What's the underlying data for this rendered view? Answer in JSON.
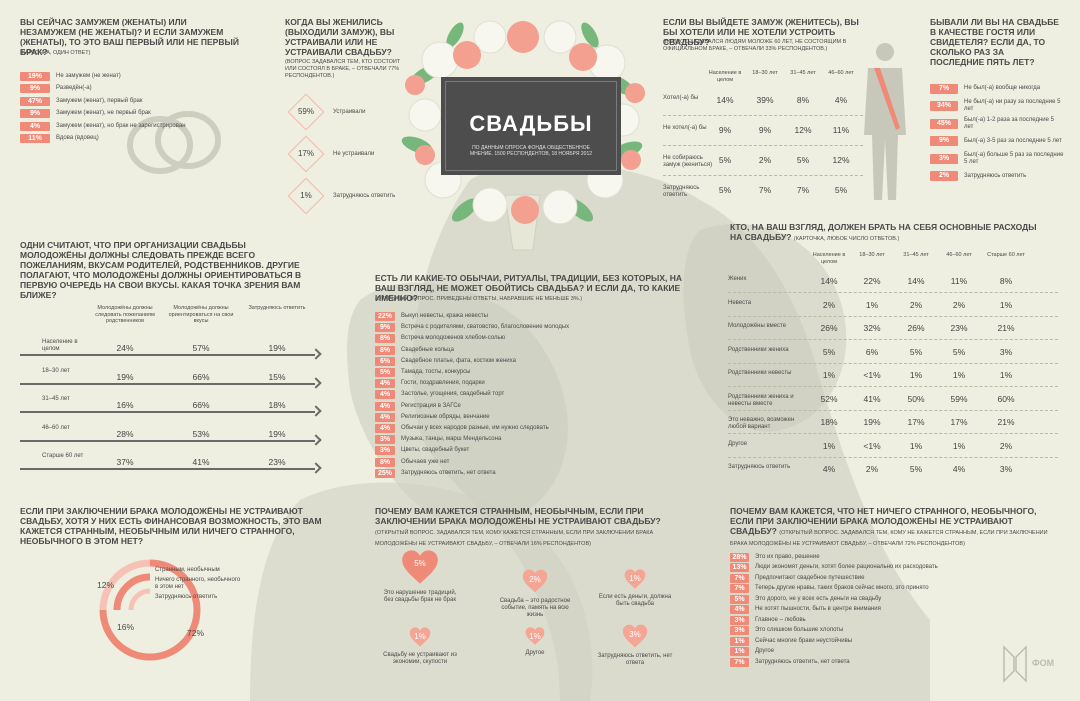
{
  "title": {
    "main": "СВАДЬБЫ",
    "sub": "ПО ДАННЫМ ОПРОСА ФОНДА ОБЩЕСТВЕННОЕ МНЕНИЕ. 1500 РЕСПОНДЕНТОВ, 18 НОЯБРЯ 2012"
  },
  "q1": {
    "title": "ВЫ СЕЙЧАС ЗАМУЖЕМ (ЖЕНАТЫ) ИЛИ НЕЗАМУЖЕМ (НЕ ЖЕНАТЫ)? И ЕСЛИ ЗАМУЖЕМ (ЖЕНАТЫ), ТО ЭТО ВАШ ПЕРВЫЙ ИЛИ НЕ ПЕРВЫЙ БРАК?",
    "note": "(КАРТОЧКА, ОДИН ОТВЕТ)",
    "items": [
      {
        "pct": "19%",
        "label": "Не замужем (не женат)"
      },
      {
        "pct": "9%",
        "label": "Разведён(-а)"
      },
      {
        "pct": "47%",
        "label": "Замужем (женат), первый брак"
      },
      {
        "pct": "9%",
        "label": "Замужем (женат), не первый брак"
      },
      {
        "pct": "4%",
        "label": "Замужем (женат), но брак не зарегистрирован"
      },
      {
        "pct": "11%",
        "label": "Вдова (вдовец)"
      }
    ]
  },
  "q2": {
    "title": "КОГДА ВЫ ЖЕНИЛИСЬ (ВЫХОДИЛИ ЗАМУЖ), ВЫ УСТРАИВАЛИ ИЛИ НЕ УСТРАИВАЛИ СВАДЬБУ?",
    "note": "(ВОПРОС ЗАДАВАЛСЯ ТЕМ, КТО СОСТОИТ ИЛИ СОСТОЯЛ В БРАКЕ, – ОТВЕЧАЛИ 77% РЕСПОНДЕНТОВ.)",
    "items": [
      {
        "pct": "59%",
        "label": "Устраивали"
      },
      {
        "pct": "17%",
        "label": "Не устраивали"
      },
      {
        "pct": "1%",
        "label": "Затрудняюсь ответить"
      }
    ]
  },
  "q3": {
    "title": "ЕСЛИ ВЫ ВЫЙДЕТЕ ЗАМУЖ (ЖЕНИТЕСЬ), ВЫ БЫ ХОТЕЛИ ИЛИ НЕ ХОТЕЛИ УСТРОИТЬ СВАДЬБУ?",
    "note": "(ВОПРОС ЗАДАВАЛСЯ ЛЮДЯМ МОЛОЖЕ 60 ЛЕТ, НЕ СОСТОЯЩИМ В ОФИЦИАЛЬНОМ БРАКЕ, – ОТВЕЧАЛИ 33% РЕСПОНДЕНТОВ.)",
    "columns": [
      "Население в целом",
      "18–30 лет",
      "31–45 лет",
      "46–60 лет"
    ],
    "rows": [
      {
        "label": "Хотел(-а) бы",
        "values": [
          "14%",
          "39%",
          "8%",
          "4%"
        ]
      },
      {
        "label": "Не хотел(-а) бы",
        "values": [
          "9%",
          "9%",
          "12%",
          "11%"
        ]
      },
      {
        "label": "Не собираюсь замуж (жениться)",
        "values": [
          "5%",
          "2%",
          "5%",
          "12%"
        ]
      },
      {
        "label": "Затрудняюсь ответить",
        "values": [
          "5%",
          "7%",
          "7%",
          "5%"
        ]
      }
    ]
  },
  "q4": {
    "title": "БЫВАЛИ ЛИ ВЫ НА СВАДЬБЕ В КАЧЕСТВЕ ГОСТЯ ИЛИ СВИДЕТЕЛЯ? ЕСЛИ ДА, ТО СКОЛЬКО РАЗ ЗА ПОСЛЕДНИЕ ПЯТЬ ЛЕТ?",
    "items": [
      {
        "pct": "7%",
        "label": "Не был(-а) вообще никогда"
      },
      {
        "pct": "34%",
        "label": "Не был(-а) ни разу за последние 5 лет"
      },
      {
        "pct": "45%",
        "label": "Был(-а) 1-2 раза за последние 5 лет"
      },
      {
        "pct": "9%",
        "label": "Был(-а) 3-5 раз за последние 5 лет"
      },
      {
        "pct": "3%",
        "label": "Был(-а) больше 5 раз за последние 5 лет"
      },
      {
        "pct": "2%",
        "label": "Затрудняюсь ответить"
      }
    ]
  },
  "q5": {
    "title": "ОДНИ СЧИТАЮТ, ЧТО ПРИ ОРГАНИЗАЦИИ СВАДЬБЫ МОЛОДОЖЁНЫ ДОЛЖНЫ СЛЕДОВАТЬ ПРЕЖДЕ ВСЕГО ПОЖЕЛАНИЯМ, ВКУСАМ РОДИТЕЛЕЙ, РОДСТВЕННИКОВ. ДРУГИЕ ПОЛАГАЮТ, ЧТО МОЛОДОЖЁНЫ ДОЛЖНЫ ОРИЕНТИРОВАТЬСЯ В ПЕРВУЮ ОЧЕРЕДЬ НА СВОИ ВКУСЫ. КАКАЯ ТОЧКА ЗРЕНИЯ ВАМ БЛИЖЕ?",
    "columns": [
      "Молодожёны должны следовать пожеланиям родственников",
      "Молодожёны должны ориентироваться на свои вкусы",
      "Затрудняюсь ответить"
    ],
    "rows": [
      {
        "label": "Население в целом",
        "values": [
          "24%",
          "57%",
          "19%"
        ]
      },
      {
        "label": "18–30 лет",
        "values": [
          "19%",
          "66%",
          "15%"
        ]
      },
      {
        "label": "31–45 лет",
        "values": [
          "16%",
          "66%",
          "18%"
        ]
      },
      {
        "label": "46–60 лет",
        "values": [
          "28%",
          "53%",
          "19%"
        ]
      },
      {
        "label": "Старше 60 лет",
        "values": [
          "37%",
          "41%",
          "23%"
        ]
      }
    ]
  },
  "q6": {
    "title": "ЕСТЬ ЛИ КАКИЕ-ТО ОБЫЧАИ, РИТУАЛЫ, ТРАДИЦИИ, БЕЗ КОТОРЫХ, НА ВАШ ВЗГЛЯД, НЕ МОЖЕТ ОБОЙТИСЬ СВАДЬБА? И ЕСЛИ ДА, ТО КАКИЕ ИМЕННО?",
    "note": "(ОТКРЫТЫЙ ВОПРОС. ПРИВЕДЕНЫ ОТВЕТЫ, НАБРАВШИЕ НЕ МЕНЬШЕ 3%.)",
    "items": [
      {
        "pct": "22%",
        "label": "Выкуп невесты, кража невесты"
      },
      {
        "pct": "9%",
        "label": "Встреча с родителями, сватовство, благословение молодых"
      },
      {
        "pct": "8%",
        "label": "Встреча молодоженов хлебом-солью"
      },
      {
        "pct": "8%",
        "label": "Свадебные кольца"
      },
      {
        "pct": "6%",
        "label": "Свадебное платье, фата, костюм жениха"
      },
      {
        "pct": "5%",
        "label": "Тамада, тосты, конкурсы"
      },
      {
        "pct": "4%",
        "label": "Гости, поздравления, подарки"
      },
      {
        "pct": "4%",
        "label": "Застолье, угощения, свадебный торт"
      },
      {
        "pct": "4%",
        "label": "Регистрация в ЗАГСе"
      },
      {
        "pct": "4%",
        "label": "Религиозные обряды, венчание"
      },
      {
        "pct": "4%",
        "label": "Обычаи у всех народов разные, им нужно следовать"
      },
      {
        "pct": "3%",
        "label": "Музыка, танцы, марш Мендельсона"
      },
      {
        "pct": "3%",
        "label": "Цветы, свадебный букет"
      },
      {
        "pct": "8%",
        "label": "Обычаев уже нет"
      },
      {
        "pct": "25%",
        "label": "Затрудняюсь ответить, нет ответа"
      }
    ]
  },
  "q7": {
    "title": "КТО, НА ВАШ ВЗГЛЯД, ДОЛЖЕН БРАТЬ НА СЕБЯ ОСНОВНЫЕ РАСХОДЫ НА СВАДЬБУ?",
    "note": "(КАРТОЧКА, ЛЮБОЕ ЧИСЛО ОТВЕТОВ.)",
    "columns": [
      "Население в целом",
      "18–30 лет",
      "31–45 лет",
      "46–60 лет",
      "Старше 60 лет"
    ],
    "rows": [
      {
        "label": "Жених",
        "values": [
          "14%",
          "22%",
          "14%",
          "11%",
          "8%"
        ]
      },
      {
        "label": "Невеста",
        "values": [
          "2%",
          "1%",
          "2%",
          "2%",
          "1%"
        ]
      },
      {
        "label": "Молодожёны вместе",
        "values": [
          "26%",
          "32%",
          "26%",
          "23%",
          "21%"
        ]
      },
      {
        "label": "Родственники жениха",
        "values": [
          "5%",
          "6%",
          "5%",
          "5%",
          "3%"
        ]
      },
      {
        "label": "Родственники невесты",
        "values": [
          "1%",
          "<1%",
          "1%",
          "1%",
          "1%"
        ]
      },
      {
        "label": "Родственники жениха и невесты вместе",
        "values": [
          "52%",
          "41%",
          "50%",
          "59%",
          "60%"
        ]
      },
      {
        "label": "Это неважно, возможен любой вариант",
        "values": [
          "18%",
          "19%",
          "17%",
          "17%",
          "21%"
        ]
      },
      {
        "label": "Другое",
        "values": [
          "1%",
          "<1%",
          "1%",
          "1%",
          "2%"
        ]
      },
      {
        "label": "Затрудняюсь ответить",
        "values": [
          "4%",
          "2%",
          "5%",
          "4%",
          "3%"
        ]
      }
    ]
  },
  "q8": {
    "title": "ЕСЛИ ПРИ ЗАКЛЮЧЕНИИ БРАКА МОЛОДОЖЁНЫ НЕ УСТРАИВАЮТ СВАДЬБУ, ХОТЯ У НИХ ЕСТЬ ФИНАНСОВАЯ ВОЗМОЖНОСТЬ, ЭТО ВАМ КАЖЕТСЯ СТРАННЫМ, НЕОБЫЧНЫМ ИЛИ НИЧЕГО СТРАННОГО, НЕОБЫЧНОГО В ЭТОМ НЕТ?",
    "legend": [
      "Странным, необычным",
      "Ничего странного, необычного в этом нет",
      "Затрудняюсь ответить"
    ],
    "values": [
      "16%",
      "72%",
      "12%"
    ]
  },
  "q9": {
    "title": "ПОЧЕМУ ВАМ КАЖЕТСЯ СТРАННЫМ, НЕОБЫЧНЫМ, ЕСЛИ ПРИ ЗАКЛЮЧЕНИИ БРАКА МОЛОДОЖЁНЫ НЕ УСТРАИВАЮТ СВАДЬБУ?",
    "note": "(ОТКРЫТЫЙ ВОПРОС. ЗАДАВАЛСЯ ТЕМ, КОМУ КАЖЕТСЯ СТРАННЫМ, ЕСЛИ ПРИ ЗАКЛЮЧЕНИИ БРАКА МОЛОДОЖЁНЫ НЕ УСТРАИВАЮТ СВАДЬБУ, – ОТВЕЧАЛИ 16% РЕСПОНДЕНТОВ)",
    "items": [
      {
        "pct": "5%",
        "label": "Это нарушение традиций, без свадьбы брак не брак"
      },
      {
        "pct": "2%",
        "label": "Свадьба – это радостное событие, память на всю жизнь"
      },
      {
        "pct": "1%",
        "label": "Если есть деньги, должна быть свадьба"
      },
      {
        "pct": "1%",
        "label": "Свадьбу не устраивают из экономии, скупости"
      },
      {
        "pct": "1%",
        "label": "Другое"
      },
      {
        "pct": "3%",
        "label": "Затрудняюсь ответить, нет ответа"
      }
    ]
  },
  "q10": {
    "title": "ПОЧЕМУ ВАМ КАЖЕТСЯ, ЧТО НЕТ НИЧЕГО СТРАННОГО, НЕОБЫЧНОГО, ЕСЛИ ПРИ ЗАКЛЮЧЕНИИ БРАКА МОЛОДОЖЁНЫ НЕ УСТРАИВАЮТ СВАДЬБУ?",
    "note": "(ОТКРЫТЫЙ ВОПРОС. ЗАДАВАЛСЯ ТЕМ, КОМУ НЕ КАЖЕТСЯ СТРАННЫМ, ЕСЛИ ПРИ ЗАКЛЮЧЕНИИ БРАКА МОЛОДОЖЁНЫ НЕ УСТРАИВАЮТ СВАДЬБУ, – ОТВЕЧАЛИ 72% РЕСПОНДЕНТОВ)",
    "items": [
      {
        "pct": "28%",
        "label": "Это их право, решение"
      },
      {
        "pct": "13%",
        "label": "Люди экономят деньги, хотят более рационально их расходовать"
      },
      {
        "pct": "7%",
        "label": "Предпочитают свадебное путешествие"
      },
      {
        "pct": "7%",
        "label": "Теперь другие нравы, таких браков сейчас много, это принято"
      },
      {
        "pct": "5%",
        "label": "Это дорого, не у всех есть деньги на свадьбу"
      },
      {
        "pct": "4%",
        "label": "Не хотят пышности, быть в центре внимания"
      },
      {
        "pct": "3%",
        "label": "Главное – любовь"
      },
      {
        "pct": "3%",
        "label": "Это слишком большие хлопоты"
      },
      {
        "pct": "1%",
        "label": "Сейчас многие браки неустойчивы"
      },
      {
        "pct": "1%",
        "label": "Другое"
      },
      {
        "pct": "7%",
        "label": "Затрудняюсь ответить, нет ответа"
      }
    ]
  },
  "logo": "ФОМ",
  "colors": {
    "accent": "#f08a78",
    "accent_light": "#f7c2b6",
    "background": "#eeefe0",
    "plaque": "#4d4d4d"
  }
}
